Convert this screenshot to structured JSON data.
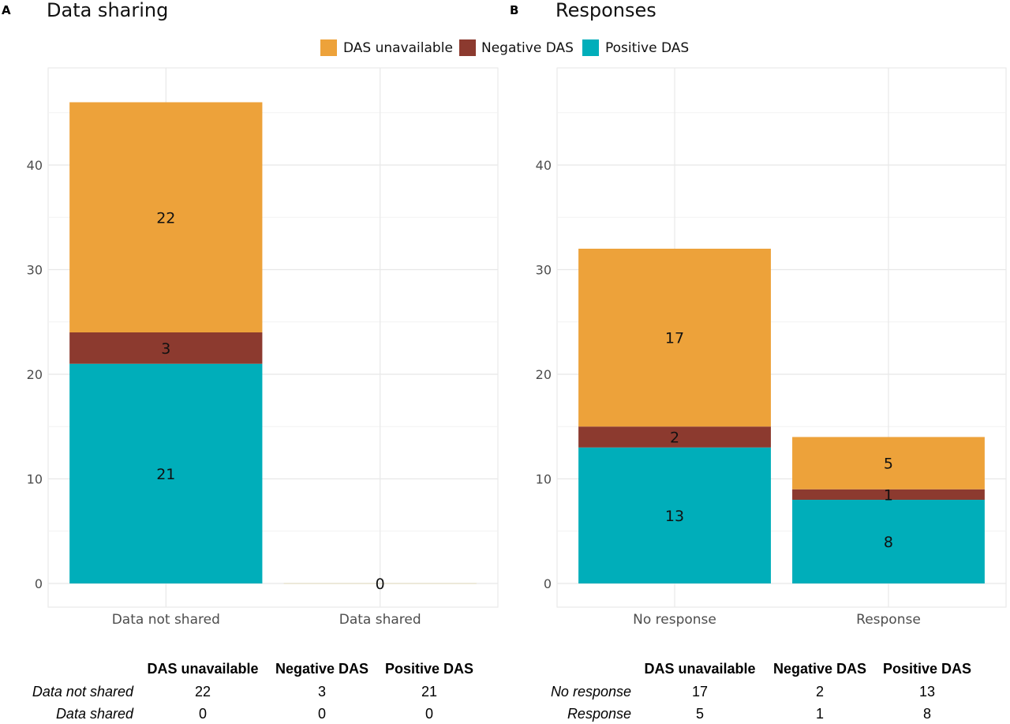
{
  "legend": {
    "items": [
      {
        "label": "DAS unavailable",
        "color": "#EDA23A"
      },
      {
        "label": "Negative DAS",
        "color": "#8C3A2F"
      },
      {
        "label": "Positive DAS",
        "color": "#00AEBA"
      }
    ]
  },
  "chart_data": [
    {
      "panel": "A",
      "type": "bar",
      "stacked": true,
      "title": "Data sharing",
      "xlabel": "",
      "ylabel": "",
      "ylim": [
        0,
        48
      ],
      "yticks": [
        0,
        10,
        20,
        30,
        40
      ],
      "grid": true,
      "categories": [
        "Data not shared",
        "Data shared"
      ],
      "series": [
        {
          "name": "Positive DAS",
          "values": [
            21,
            0
          ]
        },
        {
          "name": "Negative DAS",
          "values": [
            3,
            0
          ]
        },
        {
          "name": "DAS unavailable",
          "values": [
            22,
            0
          ]
        }
      ],
      "zero_label": "0",
      "table": {
        "columns": [
          "DAS unavailable",
          "Negative DAS",
          "Positive DAS"
        ],
        "rows": [
          {
            "label": "Data not shared",
            "values": [
              "22",
              "3",
              "21"
            ]
          },
          {
            "label": "Data shared",
            "values": [
              "0",
              "0",
              "0"
            ]
          }
        ]
      }
    },
    {
      "panel": "B",
      "type": "bar",
      "stacked": true,
      "title": "Responses",
      "xlabel": "",
      "ylabel": "",
      "ylim": [
        0,
        48
      ],
      "yticks": [
        0,
        10,
        20,
        30,
        40
      ],
      "grid": true,
      "categories": [
        "No response",
        "Response"
      ],
      "series": [
        {
          "name": "Positive DAS",
          "values": [
            13,
            8
          ]
        },
        {
          "name": "Negative DAS",
          "values": [
            2,
            1
          ]
        },
        {
          "name": "DAS unavailable",
          "values": [
            17,
            5
          ]
        }
      ],
      "table": {
        "columns": [
          "DAS unavailable",
          "Negative DAS",
          "Positive DAS"
        ],
        "rows": [
          {
            "label": "No response",
            "values": [
              "17",
              "2",
              "13"
            ]
          },
          {
            "label": "Response",
            "values": [
              "5",
              "1",
              "8"
            ]
          }
        ]
      }
    }
  ]
}
